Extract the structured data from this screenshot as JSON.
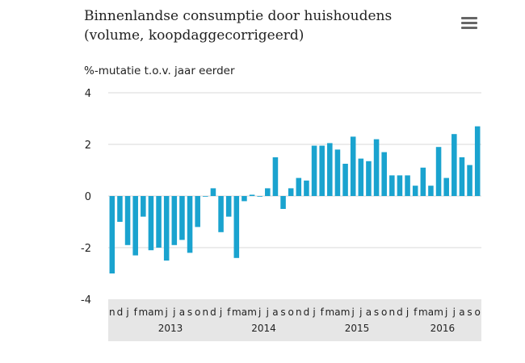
{
  "header": {
    "title_line1": "Binnenlandse consumptie door huishoudens",
    "title_line2": "(volume, koopdaggecorrigeerd)",
    "unit_label": "%-mutatie t.o.v. jaar eerder"
  },
  "menu": {
    "icon": "hamburger-menu-icon"
  },
  "chart_data": {
    "type": "bar",
    "title": "Binnenlandse consumptie door huishoudens (volume, koopdaggecorrigeerd)",
    "ylabel": "%-mutatie t.o.v. jaar eerder",
    "xlabel": "",
    "ylim": [
      -4,
      4
    ],
    "yticks": [
      4,
      2,
      0,
      -2,
      -4
    ],
    "grid": true,
    "legend": "none",
    "bar_color": "#1aa3cf",
    "x_axis_band_color": "#e6e6e6",
    "categories": [
      "n",
      "d",
      "j",
      "f",
      "m",
      "a",
      "m",
      "j",
      "j",
      "a",
      "s",
      "o",
      "n",
      "d",
      "j",
      "f",
      "m",
      "a",
      "m",
      "j",
      "j",
      "a",
      "s",
      "o",
      "n",
      "d",
      "j",
      "f",
      "m",
      "a",
      "m",
      "j",
      "j",
      "a",
      "s",
      "o",
      "n",
      "d",
      "j",
      "f",
      "m",
      "a",
      "m",
      "j",
      "j",
      "a",
      "s",
      "o"
    ],
    "years": [
      {
        "label": "2013",
        "start_index": 2
      },
      {
        "label": "2014",
        "start_index": 14
      },
      {
        "label": "2015",
        "start_index": 26
      },
      {
        "label": "2016",
        "start_index": 38
      }
    ],
    "values": [
      -3.0,
      -1.0,
      -1.9,
      -2.3,
      -0.8,
      -2.1,
      -2.0,
      -2.5,
      -1.9,
      -1.7,
      -2.2,
      -1.2,
      0.0,
      0.3,
      -1.4,
      -0.8,
      -2.4,
      -0.2,
      0.05,
      0.0,
      0.3,
      1.5,
      -0.5,
      0.3,
      0.7,
      0.6,
      1.95,
      1.95,
      2.05,
      1.8,
      1.25,
      2.3,
      1.45,
      1.35,
      2.2,
      1.7,
      0.8,
      0.8,
      0.8,
      0.4,
      1.1,
      0.4,
      1.9,
      0.7,
      2.4,
      1.5,
      1.2,
      2.7
    ]
  }
}
